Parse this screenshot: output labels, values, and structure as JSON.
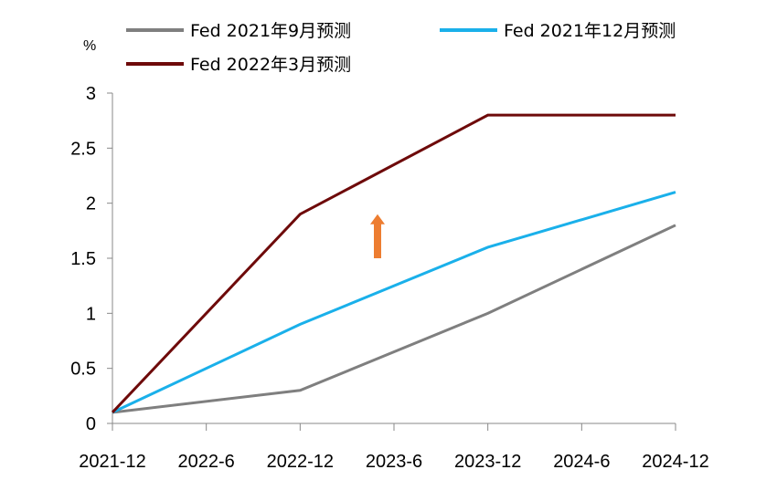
{
  "chart_data": {
    "type": "line",
    "ylabel": "%",
    "ylim": [
      0,
      3
    ],
    "yticks": [
      "0",
      "0.5",
      "1",
      "1.5",
      "2",
      "2.5",
      "3"
    ],
    "categories": [
      "2021-12",
      "2022-6",
      "2022-12",
      "2023-6",
      "2023-12",
      "2024-6",
      "2024-12"
    ],
    "legend_position": "top",
    "grid": false,
    "series": [
      {
        "name": "Fed 2021年9月预测",
        "color": "#7f7f7f",
        "points": [
          {
            "x": "2021-12",
            "y": 0.1
          },
          {
            "x": "2022-12",
            "y": 0.3
          },
          {
            "x": "2023-12",
            "y": 1.0
          },
          {
            "x": "2024-12",
            "y": 1.8
          }
        ]
      },
      {
        "name": "Fed 2021年12月预测",
        "color": "#1ab0ea",
        "points": [
          {
            "x": "2021-12",
            "y": 0.1
          },
          {
            "x": "2022-12",
            "y": 0.9
          },
          {
            "x": "2023-12",
            "y": 1.6
          },
          {
            "x": "2024-12",
            "y": 2.1
          }
        ]
      },
      {
        "name": "Fed 2022年3月预测",
        "color": "#6e0a0a",
        "points": [
          {
            "x": "2021-12",
            "y": 0.1
          },
          {
            "x": "2022-12",
            "y": 1.9
          },
          {
            "x": "2023-12",
            "y": 2.8
          },
          {
            "x": "2024-12",
            "y": 2.8
          }
        ]
      }
    ],
    "annotations": [
      {
        "type": "arrow-up",
        "color": "#ed7d31",
        "x": "2023-6",
        "y_from": 1.5,
        "y_to": 1.9
      }
    ]
  }
}
